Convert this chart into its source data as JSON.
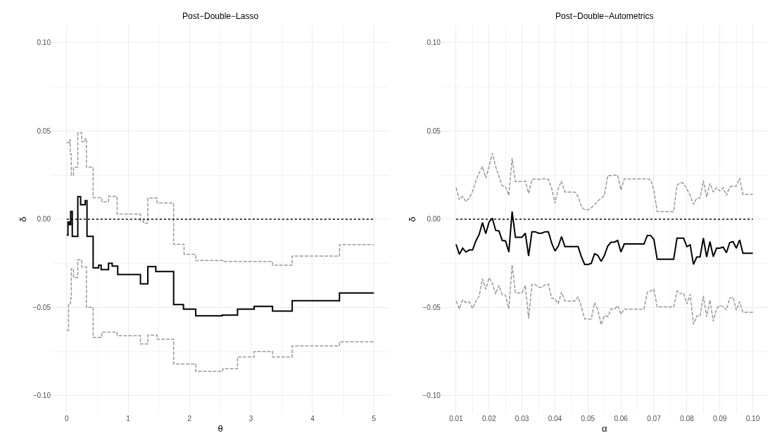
{
  "chart_data": [
    {
      "type": "step",
      "title": "Post−Double−Lasso",
      "xlabel": "θ",
      "ylabel": "δ",
      "grid": true,
      "xlim": [
        -0.25,
        5.25
      ],
      "xticks": [
        0,
        1,
        2,
        3,
        4,
        5
      ],
      "ylim": [
        -0.11,
        0.11
      ],
      "yticks": [
        {
          "value": -0.1,
          "label": "−0.10"
        },
        {
          "value": -0.05,
          "label": "−0.05"
        },
        {
          "value": 0,
          "label": "0.00"
        },
        {
          "value": 0.05,
          "label": "0.05"
        },
        {
          "value": 0.1,
          "label": "0.10"
        }
      ],
      "ref_lines": [
        {
          "axis": "y",
          "value": 0,
          "color": "#000000",
          "line_style": "dotted"
        }
      ],
      "series": [
        {
          "color": "#000000",
          "line_style": "solid",
          "x": [
            0,
            0.02,
            0.04,
            0.064,
            0.09,
            0.18,
            0.226,
            0.3,
            0.33,
            0.43,
            0.52,
            0.56,
            0.68,
            0.74,
            0.83,
            1.2,
            1.32,
            1.45,
            1.74,
            1.9,
            2.1,
            2.53,
            2.78,
            3.05,
            3.35,
            3.67,
            4.44,
            5.0
          ],
          "values": [
            -0.009,
            -0.0015,
            -0.003,
            0.0044,
            -0.0097,
            0.0128,
            0.0082,
            0.0105,
            -0.0097,
            -0.0275,
            -0.026,
            -0.0285,
            -0.025,
            -0.0265,
            -0.0313,
            -0.0366,
            -0.0268,
            -0.0296,
            -0.0484,
            -0.0509,
            -0.0547,
            -0.0543,
            -0.0509,
            -0.0494,
            -0.052,
            -0.0462,
            -0.0418,
            -0.0418
          ]
        },
        {
          "color": "#999999",
          "line_style": "dashed",
          "x": [
            0,
            0.045,
            0.056,
            0.075,
            0.11,
            0.18,
            0.245,
            0.3,
            0.32,
            0.43,
            0.57,
            0.68,
            0.82,
            1.2,
            1.25,
            1.32,
            1.47,
            1.74,
            1.91,
            2.1,
            2.54,
            3.35,
            3.67,
            4.44,
            5.0
          ],
          "values": [
            0.0434,
            0.045,
            0.037,
            0.025,
            0.0295,
            0.049,
            0.044,
            0.0457,
            0.0295,
            0.0122,
            0.0099,
            0.013,
            0.0029,
            -0.0009,
            -0.0022,
            0.012,
            0.0092,
            -0.0142,
            -0.0199,
            -0.0234,
            -0.024,
            -0.026,
            -0.0209,
            -0.0144,
            -0.0144
          ]
        },
        {
          "color": "#999999",
          "line_style": "dashed",
          "x": [
            0,
            0.03,
            0.06,
            0.075,
            0.11,
            0.18,
            0.245,
            0.32,
            0.43,
            0.57,
            0.82,
            1.2,
            1.32,
            1.47,
            1.74,
            2.1,
            2.54,
            2.78,
            3.05,
            3.35,
            3.67,
            4.44,
            5.0
          ],
          "values": [
            -0.063,
            -0.048,
            -0.045,
            -0.028,
            -0.033,
            -0.023,
            -0.027,
            -0.05,
            -0.067,
            -0.064,
            -0.066,
            -0.0707,
            -0.0657,
            -0.068,
            -0.082,
            -0.0862,
            -0.0847,
            -0.078,
            -0.075,
            -0.078,
            -0.0718,
            -0.0695,
            -0.0695
          ]
        }
      ]
    },
    {
      "type": "line",
      "title": "Post−Double−Autometrics",
      "xlabel": "α",
      "ylabel": "δ",
      "grid": true,
      "xlim": [
        0.0055,
        0.1045
      ],
      "xticks": [
        {
          "value": 0.01,
          "label": "0.01"
        },
        {
          "value": 0.02,
          "label": "0.02"
        },
        {
          "value": 0.03,
          "label": "0.03"
        },
        {
          "value": 0.04,
          "label": "0.04"
        },
        {
          "value": 0.05,
          "label": "0.05"
        },
        {
          "value": 0.06,
          "label": "0.06"
        },
        {
          "value": 0.07,
          "label": "0.07"
        },
        {
          "value": 0.08,
          "label": "0.08"
        },
        {
          "value": 0.09,
          "label": "0.09"
        },
        {
          "value": 0.1,
          "label": "0.10"
        }
      ],
      "ylim": [
        -0.11,
        0.11
      ],
      "yticks": [
        {
          "value": -0.1,
          "label": "−0.10"
        },
        {
          "value": -0.05,
          "label": "−0.05"
        },
        {
          "value": 0,
          "label": "0.00"
        },
        {
          "value": 0.05,
          "label": "0.05"
        },
        {
          "value": 0.1,
          "label": "0.10"
        }
      ],
      "ref_lines": [
        {
          "axis": "y",
          "value": 0,
          "color": "#000000",
          "line_style": "dotted"
        }
      ],
      "x": [
        0.01,
        0.011,
        0.012,
        0.013,
        0.014,
        0.015,
        0.016,
        0.017,
        0.018,
        0.019,
        0.02,
        0.021,
        0.022,
        0.023,
        0.024,
        0.025,
        0.026,
        0.027,
        0.028,
        0.029,
        0.03,
        0.031,
        0.032,
        0.033,
        0.034,
        0.035,
        0.036,
        0.037,
        0.038,
        0.039,
        0.04,
        0.041,
        0.042,
        0.043,
        0.044,
        0.045,
        0.046,
        0.047,
        0.048,
        0.049,
        0.05,
        0.051,
        0.052,
        0.053,
        0.054,
        0.055,
        0.056,
        0.057,
        0.058,
        0.059,
        0.06,
        0.061,
        0.062,
        0.063,
        0.064,
        0.065,
        0.066,
        0.067,
        0.068,
        0.069,
        0.07,
        0.071,
        0.072,
        0.073,
        0.074,
        0.075,
        0.076,
        0.077,
        0.078,
        0.079,
        0.08,
        0.081,
        0.082,
        0.083,
        0.084,
        0.085,
        0.086,
        0.087,
        0.088,
        0.089,
        0.09,
        0.091,
        0.092,
        0.093,
        0.094,
        0.095,
        0.096,
        0.097,
        0.098,
        0.099,
        0.1
      ],
      "series": [
        {
          "color": "#000000",
          "line_style": "solid",
          "values": [
            -0.0142,
            -0.0199,
            -0.0164,
            -0.0186,
            -0.0174,
            -0.0174,
            -0.0123,
            -0.0086,
            -0.0019,
            -0.0082,
            -0.0016,
            0.0006,
            -0.0063,
            -0.0066,
            -0.012,
            -0.0123,
            -0.0186,
            0.0044,
            -0.0102,
            -0.0102,
            -0.0102,
            -0.0079,
            -0.0208,
            -0.0071,
            -0.0071,
            -0.0079,
            -0.0079,
            -0.0071,
            -0.0071,
            -0.0136,
            -0.018,
            -0.0152,
            -0.0098,
            -0.0155,
            -0.0155,
            -0.0155,
            -0.0155,
            -0.0155,
            -0.0212,
            -0.0256,
            -0.0256,
            -0.025,
            -0.0195,
            -0.0205,
            -0.0239,
            -0.0205,
            -0.0152,
            -0.013,
            -0.013,
            -0.012,
            -0.0186,
            -0.014,
            -0.014,
            -0.014,
            -0.014,
            -0.014,
            -0.014,
            -0.014,
            -0.0092,
            -0.0092,
            -0.0115,
            -0.0227,
            -0.0227,
            -0.0227,
            -0.0227,
            -0.0227,
            -0.0227,
            -0.0107,
            -0.0107,
            -0.0107,
            -0.0155,
            -0.0145,
            -0.0256,
            -0.0214,
            -0.0214,
            -0.0107,
            -0.0214,
            -0.0127,
            -0.0212,
            -0.0164,
            -0.0164,
            -0.0158,
            -0.019,
            -0.0132,
            -0.0127,
            -0.0164,
            -0.0117,
            -0.0193,
            -0.0193,
            -0.0193,
            -0.0193
          ]
        },
        {
          "color": "#999999",
          "line_style": "dashed",
          "values": [
            0.0179,
            0.011,
            0.0129,
            0.01,
            0.012,
            0.0158,
            0.0217,
            0.0263,
            0.0299,
            0.0233,
            0.0299,
            0.0374,
            0.0299,
            0.0242,
            0.0188,
            0.0185,
            0.0135,
            0.0347,
            0.0214,
            0.0214,
            0.0214,
            0.0217,
            0.0147,
            0.0226,
            0.0229,
            0.0226,
            0.0229,
            0.0229,
            0.0226,
            0.0175,
            0.0091,
            0.0175,
            0.0217,
            0.0154,
            0.0154,
            0.0154,
            0.0154,
            0.0129,
            0.0072,
            0.0053,
            0.0053,
            0.0066,
            0.0082,
            0.0103,
            0.012,
            0.0135,
            0.0248,
            0.0248,
            0.025,
            0.025,
            0.0166,
            0.0229,
            0.0229,
            0.0229,
            0.0229,
            0.0229,
            0.0229,
            0.0229,
            0.0229,
            0.0223,
            0.0166,
            0.0043,
            0.0043,
            0.0043,
            0.0043,
            0.0043,
            0.0043,
            0.0192,
            0.0208,
            0.0204,
            0.017,
            0.0135,
            0.0084,
            0.012,
            0.012,
            0.022,
            0.0125,
            0.0204,
            0.0154,
            0.0179,
            0.016,
            0.0179,
            0.0135,
            0.0183,
            0.0188,
            0.0188,
            0.0233,
            0.0141,
            0.0141,
            0.0141,
            0.0141
          ]
        },
        {
          "color": "#999999",
          "line_style": "dashed",
          "values": [
            -0.0463,
            -0.0508,
            -0.0457,
            -0.0472,
            -0.0468,
            -0.0506,
            -0.0463,
            -0.0435,
            -0.0337,
            -0.0397,
            -0.0331,
            -0.0362,
            -0.0425,
            -0.0374,
            -0.0428,
            -0.0431,
            -0.0507,
            -0.0259,
            -0.0418,
            -0.0418,
            -0.0418,
            -0.0375,
            -0.0563,
            -0.0368,
            -0.0371,
            -0.0384,
            -0.0387,
            -0.0371,
            -0.0368,
            -0.0447,
            -0.0451,
            -0.0479,
            -0.0413,
            -0.0464,
            -0.0464,
            -0.0464,
            -0.0464,
            -0.0439,
            -0.0496,
            -0.0565,
            -0.0565,
            -0.0566,
            -0.0472,
            -0.0513,
            -0.0598,
            -0.0545,
            -0.0552,
            -0.0508,
            -0.051,
            -0.049,
            -0.0538,
            -0.0509,
            -0.0509,
            -0.0509,
            -0.0509,
            -0.0509,
            -0.0509,
            -0.0509,
            -0.0413,
            -0.0407,
            -0.0396,
            -0.0497,
            -0.0497,
            -0.0497,
            -0.0497,
            -0.0497,
            -0.0497,
            -0.0406,
            -0.0422,
            -0.0418,
            -0.048,
            -0.0425,
            -0.0596,
            -0.0548,
            -0.0548,
            -0.0434,
            -0.0553,
            -0.0458,
            -0.0578,
            -0.0507,
            -0.0488,
            -0.0495,
            -0.0515,
            -0.0447,
            -0.0442,
            -0.0516,
            -0.0467,
            -0.0527,
            -0.0527,
            -0.0527,
            -0.0527
          ]
        }
      ]
    }
  ]
}
